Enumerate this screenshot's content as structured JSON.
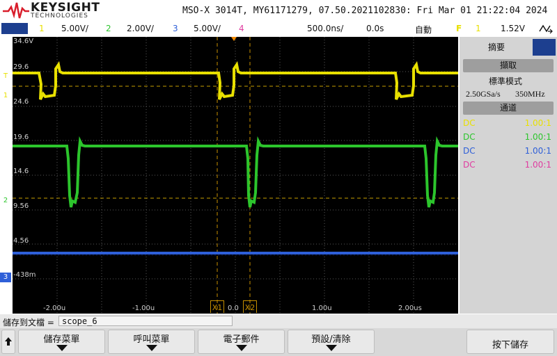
{
  "header": {
    "brand": "KEYSIGHT",
    "brand_sub": "TECHNOLOGIES",
    "title": "MSO-X 3014T, MY61171279, 07.50.2021102830: Fri Mar 01 21:22:04 2024"
  },
  "status": {
    "ch1_num": "1",
    "ch1_scale": "5.00V/",
    "ch2_num": "2",
    "ch2_scale": "2.00V/",
    "ch3_num": "3",
    "ch3_scale": "5.00V/",
    "ch4_num": "4",
    "timebase": "500.0ns/",
    "delay": "0.0s",
    "trigger_mode": "自動",
    "trigger_icon": "F",
    "trigger_src": "1",
    "trigger_level": "1.52V",
    "colors": {
      "ch1": "#e8e000",
      "ch2": "#2cc52c",
      "ch3": "#2e5fd8",
      "ch4": "#e03ca0"
    }
  },
  "plot": {
    "y_labels": [
      "34.6V",
      "29.6",
      "24.6",
      "19.6",
      "14.6",
      "9.56",
      "4.56",
      "-438m"
    ],
    "x_labels": [
      "-2.00u",
      "-1.00u",
      "0.0",
      "1.00u",
      "2.00us"
    ],
    "cursor1": "X1",
    "cursor2": "X2",
    "markers": {
      "ch1": "1",
      "ch2": "2",
      "ch3": "3",
      "trig": "T"
    }
  },
  "panel": {
    "tab_summary": "摘要",
    "acquire_label": "擷取",
    "mode": "標準模式",
    "sample_rate": "2.50GSa/s",
    "bandwidth": "350MHz",
    "channels_label": "通道",
    "channels": [
      {
        "coupling": "DC",
        "ratio": "1.00:1",
        "color": "#e8e000"
      },
      {
        "coupling": "DC",
        "ratio": "1.00:1",
        "color": "#2cc52c"
      },
      {
        "coupling": "DC",
        "ratio": "1.00:1",
        "color": "#2e5fd8"
      },
      {
        "coupling": "DC",
        "ratio": "1.00:1",
        "color": "#e03ca0"
      }
    ]
  },
  "save": {
    "label": "儲存到文檔 =",
    "filename": "scope_6"
  },
  "softkeys": {
    "k1": "儲存菜單",
    "k2": "呼叫菜單",
    "k3": "電子郵件",
    "k4": "預設/清除",
    "k5": "按下儲存"
  }
}
